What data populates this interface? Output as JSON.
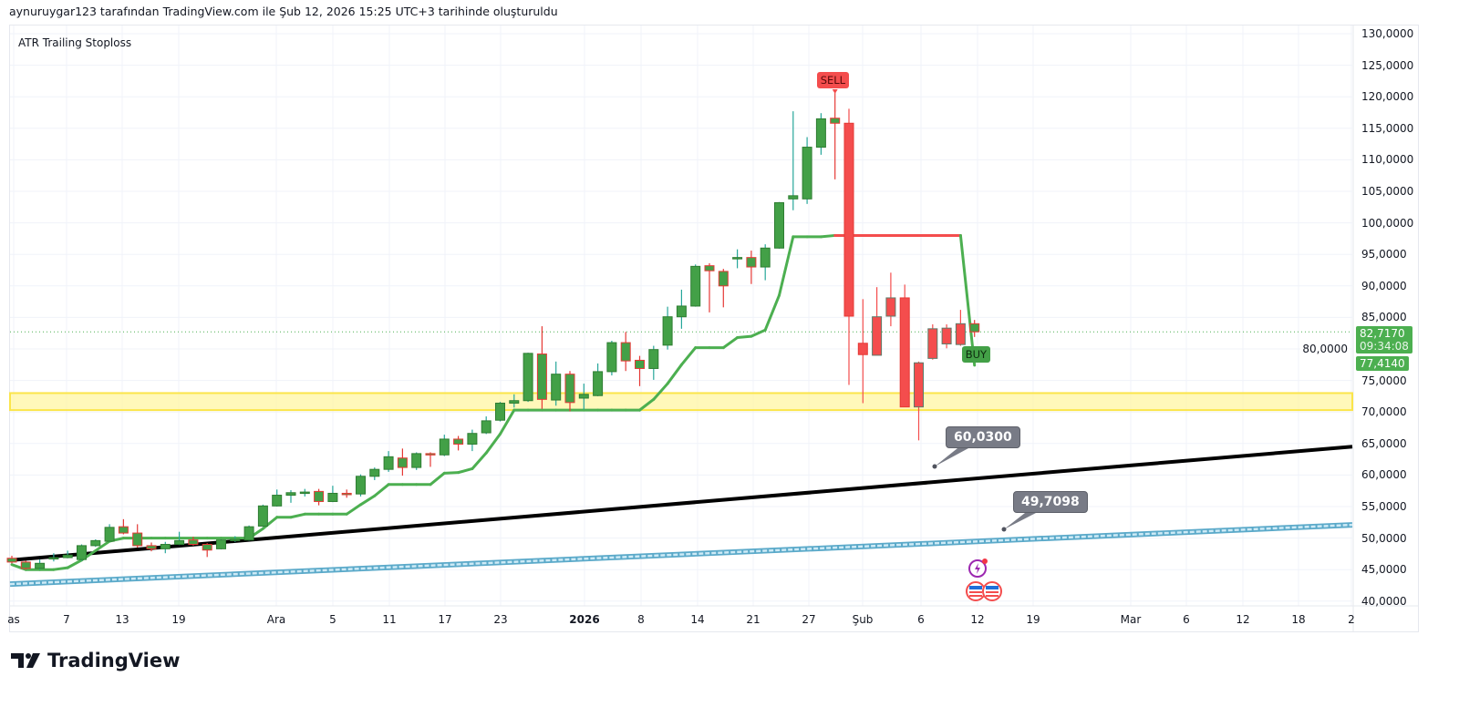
{
  "header": {
    "caption": "aynuruygar123 tarafından TradingView.com ile Şub 12, 2026 15:25 UTC+3 tarihinde oluşturuldu"
  },
  "indicator": {
    "title": "ATR Trailing Stoploss"
  },
  "branding": {
    "logo_text": "TradingView"
  },
  "colors": {
    "up": "#43a047",
    "down": "#f44d4d",
    "stop_long": "#4caf50",
    "stop_short": "#f44d4d",
    "zone": "#fff59d",
    "zone_border": "#fbe54a",
    "trend": "#000000",
    "channel": "#8ecae6"
  },
  "price_tags": {
    "last_price": "82,7170",
    "countdown": "09:34:08",
    "stop_value": "77,4140"
  },
  "signals": {
    "sell": "SELL",
    "buy": "BUY"
  },
  "callouts": {
    "trend_value": "60,0300",
    "channel_value": "49,7098"
  },
  "icons": {
    "event_1": "lightning-icon",
    "event_2": "us-flag-icon"
  },
  "chart_data": {
    "type": "candlestick",
    "title": "ATR Trailing Stoploss",
    "y_ticks": [
      "130,0000",
      "125,0000",
      "120,0000",
      "115,0000",
      "110,0000",
      "105,0000",
      "100,0000",
      "95,0000",
      "90,0000",
      "85,0000",
      "80,0000",
      "75,0000",
      "70,0000",
      "65,0000",
      "60,0000",
      "55,0000",
      "50,0000",
      "45,0000",
      "40,0000"
    ],
    "y_tick_values": [
      130,
      125,
      120,
      115,
      110,
      105,
      100,
      95,
      90,
      85,
      80,
      75,
      70,
      65,
      60,
      55,
      50,
      45,
      40
    ],
    "ylim": [
      40,
      130
    ],
    "x_ticks": [
      "as",
      "7",
      "13",
      "19",
      "Ara",
      "5",
      "11",
      "17",
      "23",
      "2026",
      "8",
      "14",
      "21",
      "27",
      "Şub",
      "6",
      "12",
      "19",
      "Mar",
      "6",
      "12",
      "18",
      "2"
    ],
    "x_ticks_bold": [
      "2026"
    ],
    "grid": true,
    "last_price": 82.717,
    "candles": [
      [
        46.8,
        47.2,
        46.0,
        46.2,
        "g"
      ],
      [
        46.2,
        46.4,
        45.0,
        45.2,
        "g"
      ],
      [
        45.2,
        46.6,
        45.0,
        46.0,
        "g"
      ],
      [
        46.8,
        47.6,
        46.3,
        46.9,
        "g"
      ],
      [
        46.9,
        48.0,
        46.8,
        47.3,
        "g"
      ],
      [
        46.6,
        49.0,
        46.4,
        48.8,
        "g"
      ],
      [
        48.8,
        49.8,
        48.6,
        49.6,
        "g"
      ],
      [
        49.5,
        52.2,
        49.4,
        51.7,
        "g"
      ],
      [
        51.8,
        53.0,
        50.6,
        50.8,
        "g"
      ],
      [
        50.8,
        52.2,
        48.5,
        48.8,
        "g"
      ],
      [
        48.8,
        49.3,
        47.9,
        48.3,
        "g"
      ],
      [
        48.3,
        49.4,
        47.6,
        49.0,
        "g"
      ],
      [
        49.0,
        51.0,
        48.9,
        49.6,
        "g"
      ],
      [
        49.7,
        50.2,
        48.8,
        49.0,
        "g"
      ],
      [
        49.0,
        49.2,
        47.0,
        48.1,
        "g"
      ],
      [
        48.3,
        49.8,
        48.2,
        49.7,
        "g"
      ],
      [
        49.7,
        50.3,
        49.4,
        49.8,
        "g"
      ],
      [
        49.7,
        52.0,
        49.6,
        51.8,
        "g"
      ],
      [
        51.9,
        55.3,
        51.8,
        55.1,
        "g"
      ],
      [
        55.1,
        57.7,
        55.0,
        56.8,
        "g"
      ],
      [
        56.8,
        57.6,
        55.6,
        57.2,
        "g"
      ],
      [
        57.2,
        57.8,
        56.6,
        57.3,
        "g"
      ],
      [
        57.4,
        57.8,
        55.2,
        55.8,
        "g"
      ],
      [
        55.8,
        58.3,
        55.7,
        57.1,
        "g"
      ],
      [
        57.1,
        57.7,
        56.4,
        57.0,
        "g"
      ],
      [
        57.0,
        60.1,
        56.6,
        59.8,
        "g"
      ],
      [
        59.8,
        61.2,
        59.2,
        60.9,
        "g"
      ],
      [
        60.9,
        63.8,
        60.5,
        62.9,
        "g"
      ],
      [
        62.7,
        64.2,
        59.9,
        61.2,
        "g"
      ],
      [
        61.2,
        63.6,
        60.8,
        63.4,
        "g"
      ],
      [
        63.4,
        63.6,
        61.3,
        63.2,
        "g"
      ],
      [
        63.2,
        66.4,
        63.0,
        65.7,
        "g"
      ],
      [
        65.7,
        66.2,
        63.9,
        64.9,
        "g"
      ],
      [
        64.9,
        67.2,
        63.8,
        66.6,
        "g"
      ],
      [
        66.7,
        69.3,
        66.5,
        68.6,
        "g"
      ],
      [
        68.7,
        71.6,
        68.5,
        71.4,
        "g"
      ],
      [
        71.4,
        72.8,
        70.7,
        71.8,
        "g"
      ],
      [
        71.8,
        79.4,
        71.6,
        79.3,
        "g"
      ],
      [
        79.2,
        83.6,
        70.5,
        72.0,
        "g"
      ],
      [
        71.9,
        78.0,
        71.0,
        76.0,
        "g"
      ],
      [
        76.0,
        76.5,
        70.1,
        71.5,
        "g"
      ],
      [
        72.2,
        74.5,
        70.4,
        72.8,
        "g"
      ],
      [
        72.6,
        77.7,
        72.5,
        76.4,
        "g"
      ],
      [
        76.4,
        81.3,
        75.8,
        81.0,
        "g"
      ],
      [
        81.0,
        82.7,
        76.5,
        78.1,
        "g"
      ],
      [
        78.2,
        78.9,
        74.1,
        76.9,
        "g"
      ],
      [
        76.9,
        80.5,
        75.1,
        79.9,
        "g"
      ],
      [
        80.6,
        86.7,
        79.9,
        85.1,
        "g"
      ],
      [
        85.1,
        89.4,
        83.2,
        86.8,
        "g"
      ],
      [
        86.8,
        93.4,
        86.7,
        93.1,
        "g"
      ],
      [
        93.2,
        93.6,
        85.8,
        92.4,
        "g"
      ],
      [
        92.3,
        92.7,
        86.6,
        90.0,
        "g"
      ],
      [
        94.3,
        95.8,
        92.8,
        94.5,
        "g"
      ],
      [
        94.5,
        95.6,
        90.3,
        93.0,
        "g"
      ],
      [
        93.0,
        96.6,
        90.9,
        96.0,
        "g"
      ],
      [
        96.0,
        103.3,
        95.9,
        103.2,
        "g"
      ],
      [
        103.8,
        117.7,
        102.0,
        104.3,
        "g"
      ],
      [
        103.8,
        113.6,
        103.0,
        112.0,
        "g"
      ],
      [
        112.0,
        117.4,
        110.8,
        116.5,
        "g"
      ],
      [
        116.6,
        120.6,
        106.9,
        115.8,
        "g"
      ],
      [
        115.8,
        118.1,
        74.3,
        85.2,
        "r"
      ],
      [
        80.9,
        87.9,
        71.4,
        79.1,
        "r"
      ],
      [
        79.0,
        89.8,
        79.0,
        85.1,
        "r"
      ],
      [
        85.2,
        92.1,
        83.6,
        88.1,
        "r"
      ],
      [
        88.1,
        90.2,
        70.8,
        70.8,
        "r"
      ],
      [
        70.8,
        78.0,
        65.5,
        77.8,
        "r"
      ],
      [
        78.5,
        83.9,
        78.3,
        83.2,
        "r"
      ],
      [
        80.8,
        83.9,
        80.1,
        83.3,
        "r"
      ],
      [
        80.7,
        86.2,
        80.5,
        84.0,
        "r"
      ],
      [
        84.0,
        84.6,
        81.9,
        82.717,
        "g"
      ]
    ],
    "atr_stop": [
      45.8,
      45.0,
      45.0,
      45.0,
      45.3,
      46.5,
      48.0,
      49.5,
      50.0,
      50.0,
      50.0,
      50.0,
      50.0,
      50.0,
      50.0,
      50.0,
      50.0,
      50.0,
      51.5,
      53.3,
      53.3,
      53.8,
      53.8,
      53.8,
      53.8,
      55.3,
      56.7,
      58.5,
      58.5,
      58.5,
      58.5,
      60.3,
      60.4,
      61.0,
      63.5,
      66.5,
      70.3,
      70.3,
      70.3,
      70.3,
      70.3,
      70.3,
      70.3,
      70.3,
      70.3,
      70.3,
      72.0,
      74.5,
      77.5,
      80.2,
      80.2,
      80.2,
      81.8,
      82.0,
      83.0,
      88.5,
      97.8,
      97.8,
      97.8,
      98.0,
      98.0,
      98.0,
      98.0,
      98.0,
      98.0,
      98.0,
      98.0,
      98.0,
      98.0,
      77.414
    ],
    "short_candle_range": [
      60,
      69
    ],
    "sell_signal_candle": 60,
    "buy_signal_candle": 70,
    "support_zone": [
      70.3,
      73.0
    ],
    "trendline": {
      "start": 46.5,
      "end": 64.5,
      "marked_value": 60.03
    },
    "channel": {
      "start": 42.7,
      "end": 52.1,
      "marked_value": 49.7098
    }
  }
}
